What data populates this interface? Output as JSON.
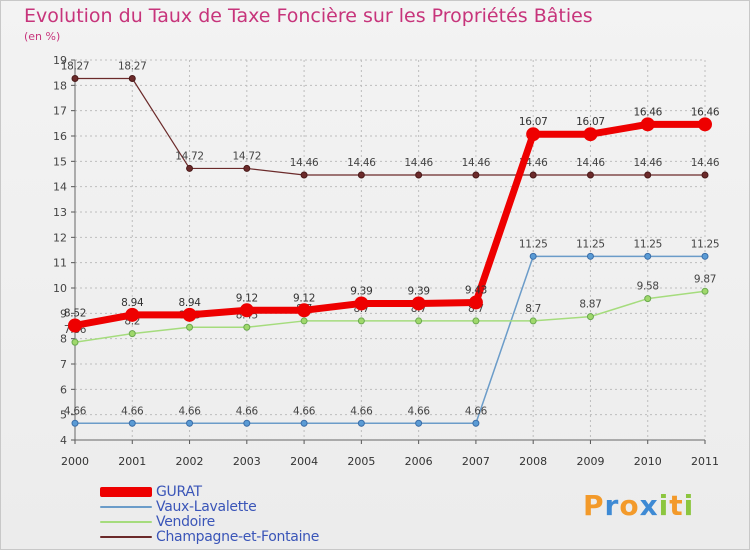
{
  "chart_data": {
    "type": "line",
    "title": "Evolution du Taux de Taxe Foncière sur les Propriétés Bâties",
    "subtitle": "(en %)",
    "x": [
      "2000",
      "2001",
      "2002",
      "2003",
      "2004",
      "2005",
      "2006",
      "2007",
      "2008",
      "2009",
      "2010",
      "2011"
    ],
    "ylim": [
      4,
      19
    ],
    "yticks": [
      4,
      5,
      6,
      7,
      8,
      9,
      10,
      11,
      12,
      13,
      14,
      15,
      16,
      17,
      18,
      19
    ],
    "grid": true,
    "legend_position": "bottom-left",
    "series": [
      {
        "name": "Champagne-et-Fontaine",
        "color": "#6b2a2a",
        "values": [
          18.27,
          18.27,
          14.72,
          14.72,
          14.46,
          14.46,
          14.46,
          14.46,
          14.46,
          14.46,
          14.46,
          14.46
        ],
        "labels": [
          "18.27",
          "18.27",
          "14.72",
          "14.72",
          "14.46",
          "14.46",
          "14.46",
          "14.46",
          "14.46",
          "14.46",
          "14.46",
          "14.46"
        ]
      },
      {
        "name": "Vaux-Lavalette",
        "color": "#6b9cc9",
        "values": [
          4.66,
          4.66,
          4.66,
          4.66,
          4.66,
          4.66,
          4.66,
          4.66,
          11.25,
          11.25,
          11.25,
          11.25
        ],
        "labels": [
          "4.66",
          "4.66",
          "4.66",
          "4.66",
          "4.66",
          "4.66",
          "4.66",
          "4.66",
          "11.25",
          "11.25",
          "11.25",
          "11.25"
        ]
      },
      {
        "name": "Vendoire",
        "color": "#a5dc7d",
        "values": [
          7.86,
          8.2,
          8.45,
          8.45,
          8.7,
          8.7,
          8.7,
          8.7,
          8.7,
          8.87,
          9.58,
          9.87
        ],
        "labels": [
          "7.86",
          "8.2",
          "8.45",
          "8.45",
          "8.7",
          "8.7",
          "8.7",
          "8.7",
          "8.7",
          "8.87",
          "9.58",
          "9.87"
        ]
      },
      {
        "name": "GURAT",
        "color": "#ee0000",
        "values": [
          8.52,
          8.94,
          8.94,
          9.12,
          9.12,
          9.39,
          9.39,
          9.43,
          16.07,
          16.07,
          16.46,
          16.46
        ],
        "labels": [
          "8.52",
          "8.94",
          "8.94",
          "9.12",
          "9.12",
          "9.39",
          "9.39",
          "9.43",
          "16.07",
          "16.07",
          "16.46",
          "16.46"
        ]
      }
    ]
  },
  "legend": {
    "items": [
      {
        "label": "GURAT",
        "color": "#ee0000"
      },
      {
        "label": "Vaux-Lavalette",
        "color": "#6b9cc9"
      },
      {
        "label": "Vendoire",
        "color": "#a5dc7d"
      },
      {
        "label": "Champagne-et-Fontaine",
        "color": "#6b2a2a"
      }
    ]
  },
  "logo": {
    "text": "Proxiti",
    "letters": [
      {
        "ch": "P",
        "color": "#f39a2a"
      },
      {
        "ch": "r",
        "color": "#3e8ad4"
      },
      {
        "ch": "o",
        "color": "#f39a2a"
      },
      {
        "ch": "x",
        "color": "#3e8ad4"
      },
      {
        "ch": "i",
        "color": "#8cc63f"
      },
      {
        "ch": "t",
        "color": "#f39a2a"
      },
      {
        "ch": "i",
        "color": "#8cc63f"
      }
    ]
  }
}
